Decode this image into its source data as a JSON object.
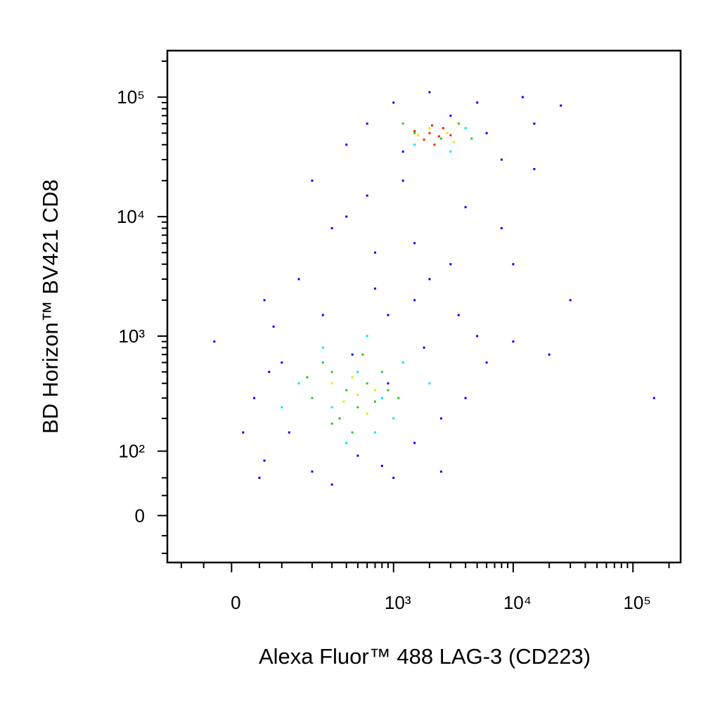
{
  "chart_data": {
    "type": "scatter",
    "x_label": "Alexa Fluor™ 488 LAG-3 (CD223)",
    "y_label": "BD Horizon™ BV421 CD8",
    "xscale": "biexponential",
    "yscale": "biexponential",
    "xlim": [
      -140,
      250000
    ],
    "ylim": [
      -65,
      245000
    ],
    "xticks": [
      0,
      {
        "value": 1000,
        "label": "10³"
      },
      {
        "value": 10000,
        "label": "10⁴"
      },
      {
        "value": 100000,
        "label": "10⁵"
      }
    ],
    "yticks": [
      0,
      {
        "value": 100,
        "label": "10²"
      },
      {
        "value": 1000,
        "label": "10³"
      },
      {
        "value": 10000,
        "label": "10⁴"
      },
      {
        "value": 100000,
        "label": "10⁵"
      }
    ],
    "xminorticks": [
      -100,
      -50,
      50,
      100,
      200,
      300,
      400,
      500,
      600,
      700,
      800,
      900,
      2000,
      3000,
      4000,
      5000,
      6000,
      7000,
      8000,
      9000,
      20000,
      30000,
      40000,
      50000,
      60000,
      70000,
      80000,
      90000,
      200000
    ],
    "yminorticks": [
      -50,
      -25,
      25,
      50,
      200,
      300,
      400,
      500,
      600,
      700,
      800,
      900,
      2000,
      3000,
      4000,
      5000,
      6000,
      7000,
      8000,
      9000,
      20000,
      30000,
      40000,
      50000,
      60000,
      70000,
      80000,
      90000,
      200000
    ],
    "series": [
      {
        "color": "#0000ff",
        "x": [
          60,
          120,
          200,
          300,
          500,
          800,
          1500,
          2500,
          4000,
          6000,
          10000,
          20000,
          30000,
          150,
          300,
          600,
          1200,
          4000,
          8000,
          15000,
          100,
          80,
          250,
          700,
          2000,
          3500,
          5000,
          1800,
          900,
          40,
          70,
          3000,
          1000,
          5000,
          12000,
          25000,
          600,
          400,
          8000,
          200,
          150000,
          -30,
          20,
          50,
          1000,
          2500,
          700,
          1500,
          3000,
          10000,
          400,
          1200,
          6000,
          15000,
          2000,
          350,
          900,
          1500,
          60,
          450
        ],
        "y": [
          80,
          150,
          60,
          40,
          90,
          70,
          120,
          200,
          300,
          600,
          900,
          700,
          2000,
          3000,
          8000,
          15000,
          20000,
          12000,
          8000,
          25000,
          600,
          1200,
          1500,
          2500,
          3000,
          1500,
          1000,
          800,
          400,
          300,
          500,
          70000,
          90000,
          90000,
          100000,
          85000,
          60000,
          40000,
          30000,
          20000,
          300,
          900,
          150,
          50,
          50,
          60,
          5000,
          6000,
          4000,
          4000,
          10000,
          35000,
          50000,
          60000,
          110000,
          200,
          1500,
          2000,
          2000,
          700
        ]
      },
      {
        "color": "#00e5ff",
        "x": [
          150,
          300,
          500,
          800,
          1200,
          250,
          700,
          100,
          2000,
          1500,
          4000,
          3000,
          600,
          400,
          1000
        ],
        "y": [
          400,
          250,
          500,
          300,
          600,
          800,
          150,
          250,
          400,
          40000,
          55000,
          35000,
          1000,
          120,
          200
        ]
      },
      {
        "color": "#22cc22",
        "x": [
          200,
          300,
          400,
          500,
          600,
          350,
          250,
          700,
          450,
          800,
          1500,
          2500,
          3500,
          1200,
          900,
          550,
          300,
          1100,
          180,
          4500
        ],
        "y": [
          300,
          500,
          350,
          250,
          400,
          200,
          600,
          280,
          150,
          500,
          50000,
          45000,
          60000,
          60000,
          350,
          700,
          180,
          300,
          450,
          45000
        ]
      },
      {
        "color": "#e8e800",
        "x": [
          380,
          500,
          300,
          600,
          2000,
          2800,
          1600,
          3200,
          450,
          700
        ],
        "y": [
          280,
          320,
          400,
          220,
          55000,
          50000,
          48000,
          42000,
          450,
          350
        ]
      },
      {
        "color": "#ff2000",
        "x": [
          2000,
          2400,
          1800,
          2600,
          2200,
          3000,
          1500,
          2100
        ],
        "y": [
          50000,
          47000,
          44000,
          55000,
          40000,
          48000,
          52000,
          58000
        ]
      }
    ]
  }
}
